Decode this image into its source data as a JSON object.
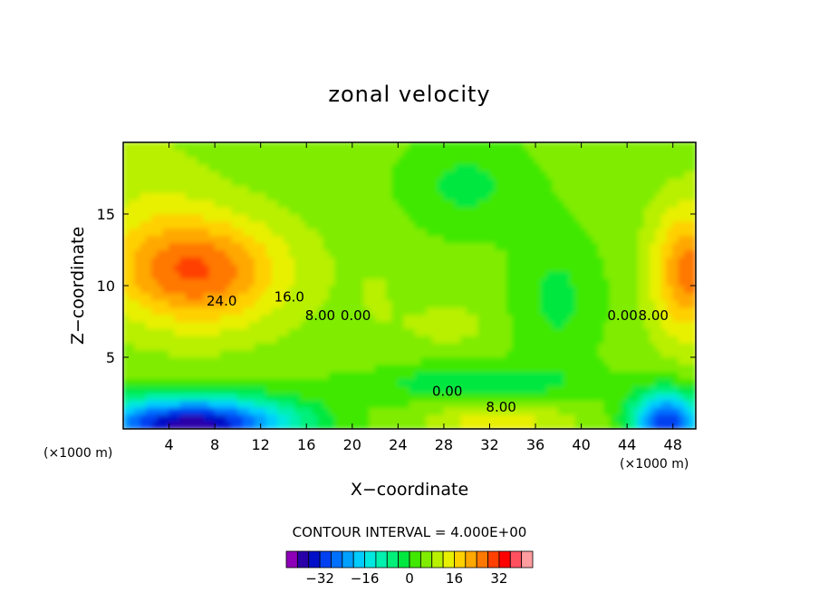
{
  "chart_data": {
    "type": "contour",
    "title": "zonal velocity",
    "xlabel": "X−coordinate",
    "ylabel": "Z−coordinate",
    "x_unit_left": "(×1000 m)",
    "x_unit_right": "(×1000 m)",
    "xlim": [
      0,
      50
    ],
    "ylim": [
      0,
      20
    ],
    "x_ticks": [
      4,
      8,
      12,
      16,
      20,
      24,
      28,
      32,
      36,
      40,
      44,
      48
    ],
    "y_ticks": [
      5,
      10,
      15
    ],
    "contour_interval_text": "CONTOUR INTERVAL = 4.000E+00",
    "contour_labels": [
      {
        "text": "24.0",
        "x": 8.6,
        "y": 8.6
      },
      {
        "text": "16.0",
        "x": 14.5,
        "y": 8.9
      },
      {
        "text": "8.00",
        "x": 17.2,
        "y": 7.6
      },
      {
        "text": "0.00",
        "x": 20.3,
        "y": 7.6
      },
      {
        "text": "0.00",
        "x": 28.3,
        "y": 2.3
      },
      {
        "text": "8.00",
        "x": 33.0,
        "y": 1.2
      },
      {
        "text": "0.00",
        "x": 43.6,
        "y": 7.6
      },
      {
        "text": "8.00",
        "x": 46.3,
        "y": 7.6
      }
    ],
    "colorbar": {
      "levels": [
        -40,
        -36,
        -32,
        -28,
        -24,
        -20,
        -16,
        -12,
        -8,
        -4,
        0,
        4,
        8,
        12,
        16,
        20,
        24,
        28,
        32,
        36,
        40
      ],
      "colors": [
        "#8e00b8",
        "#2a00a8",
        "#0010c8",
        "#0040f0",
        "#0070ff",
        "#00a0ff",
        "#00ccff",
        "#00e8e0",
        "#00f0b0",
        "#00f07a",
        "#00e840",
        "#40e800",
        "#80ec00",
        "#b8f000",
        "#e8f000",
        "#ffd000",
        "#ffa800",
        "#ff7800",
        "#ff4000",
        "#ff0000",
        "#ff5060",
        "#ff9ca0"
      ],
      "tick_labels": [
        "−32",
        "−16",
        "0",
        "16",
        "32"
      ]
    },
    "levels_at_ticks": [
      -32,
      -16,
      0,
      16,
      32
    ]
  }
}
